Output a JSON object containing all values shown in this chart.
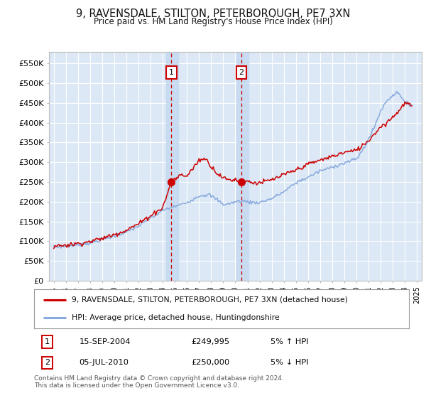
{
  "title": "9, RAVENSDALE, STILTON, PETERBOROUGH, PE7 3XN",
  "subtitle": "Price paid vs. HM Land Registry's House Price Index (HPI)",
  "ylabel_ticks": [
    "£0",
    "£50K",
    "£100K",
    "£150K",
    "£200K",
    "£250K",
    "£300K",
    "£350K",
    "£400K",
    "£450K",
    "£500K",
    "£550K"
  ],
  "ytick_values": [
    0,
    50000,
    100000,
    150000,
    200000,
    250000,
    300000,
    350000,
    400000,
    450000,
    500000,
    550000
  ],
  "ylim": [
    0,
    580000
  ],
  "xlim_min": 1994.6,
  "xlim_max": 2025.4,
  "background_color": "#ffffff",
  "plot_bg_color": "#dce8f5",
  "grid_color": "#ffffff",
  "legend_entry1": "9, RAVENSDALE, STILTON, PETERBOROUGH, PE7 3XN (detached house)",
  "legend_entry2": "HPI: Average price, detached house, Huntingdonshire",
  "sale1_date": "15-SEP-2004",
  "sale1_price": "£249,995",
  "sale1_hpi": "5% ↑ HPI",
  "sale2_date": "05-JUL-2010",
  "sale2_price": "£250,000",
  "sale2_hpi": "5% ↓ HPI",
  "footer": "Contains HM Land Registry data © Crown copyright and database right 2024.\nThis data is licensed under the Open Government Licence v3.0.",
  "line_color_red": "#cc0000",
  "line_color_blue": "#88aadd",
  "marker_color_red": "#cc0000",
  "sale1_x": 2004.71,
  "sale2_x": 2010.5,
  "sale1_y": 249995,
  "sale2_y": 250000,
  "vline1_x": 2004.71,
  "vline2_x": 2010.5,
  "shade1_xmin": 2004.3,
  "shade1_xmax": 2005.3,
  "shade2_xmin": 2010.1,
  "shade2_xmax": 2011.1
}
